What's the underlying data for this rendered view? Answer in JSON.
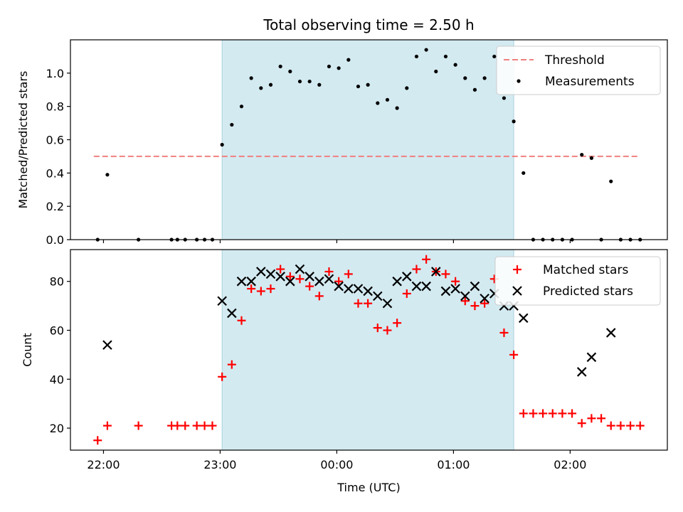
{
  "chart_data": [
    {
      "type": "scatter",
      "title": "Total observing time = 2.50 h",
      "xlabel": "",
      "ylabel": "Matched/Predicted stars",
      "ylim": [
        0,
        1.2
      ],
      "yticks": [
        "0.0",
        "0.2",
        "0.4",
        "0.6",
        "0.8",
        "1.0"
      ],
      "xlim": [
        "21:43",
        "02:50"
      ],
      "highlight_span": [
        "23:01",
        "01:31"
      ],
      "highlight_color": "#d3eaf1",
      "threshold": {
        "name": "Threshold",
        "value": 0.5,
        "x_range": [
          "21:55",
          "02:35"
        ],
        "color": "#f08080"
      },
      "legend_position": "upper right",
      "series": [
        {
          "name": "Measurements",
          "color": "#000000",
          "points": [
            [
              "21:57",
              0.0
            ],
            [
              "22:02",
              0.39
            ],
            [
              "22:18",
              0.0
            ],
            [
              "22:35",
              0.0
            ],
            [
              "22:38",
              0.0
            ],
            [
              "22:42",
              0.0
            ],
            [
              "22:48",
              0.0
            ],
            [
              "22:52",
              0.0
            ],
            [
              "22:56",
              0.0
            ],
            [
              "23:01",
              0.57
            ],
            [
              "23:06",
              0.69
            ],
            [
              "23:11",
              0.8
            ],
            [
              "23:16",
              0.97
            ],
            [
              "23:21",
              0.91
            ],
            [
              "23:26",
              0.93
            ],
            [
              "23:31",
              1.04
            ],
            [
              "23:36",
              1.01
            ],
            [
              "23:41",
              0.95
            ],
            [
              "23:46",
              0.95
            ],
            [
              "23:51",
              0.93
            ],
            [
              "23:56",
              1.04
            ],
            [
              "00:01",
              1.03
            ],
            [
              "00:06",
              1.08
            ],
            [
              "00:11",
              0.92
            ],
            [
              "00:16",
              0.93
            ],
            [
              "00:21",
              0.82
            ],
            [
              "00:26",
              0.84
            ],
            [
              "00:31",
              0.79
            ],
            [
              "00:36",
              0.91
            ],
            [
              "00:41",
              1.1
            ],
            [
              "00:46",
              1.14
            ],
            [
              "00:51",
              1.01
            ],
            [
              "00:56",
              1.1
            ],
            [
              "01:01",
              1.05
            ],
            [
              "01:06",
              0.97
            ],
            [
              "01:11",
              0.9
            ],
            [
              "01:16",
              0.97
            ],
            [
              "01:21",
              1.1
            ],
            [
              "01:26",
              0.85
            ],
            [
              "01:31",
              0.71
            ],
            [
              "01:36",
              0.4
            ],
            [
              "01:41",
              0.0
            ],
            [
              "01:46",
              0.0
            ],
            [
              "01:51",
              0.0
            ],
            [
              "01:56",
              0.0
            ],
            [
              "02:01",
              0.0
            ],
            [
              "02:06",
              0.51
            ],
            [
              "02:11",
              0.49
            ],
            [
              "02:16",
              0.0
            ],
            [
              "02:21",
              0.35
            ],
            [
              "02:26",
              0.0
            ],
            [
              "02:31",
              0.0
            ],
            [
              "02:36",
              0.0
            ]
          ]
        }
      ]
    },
    {
      "type": "scatter",
      "title": "",
      "xlabel": "Time (UTC)",
      "ylabel": "Count",
      "ylim": [
        11,
        93
      ],
      "yticks": [
        "20",
        "40",
        "60",
        "80"
      ],
      "xticks": [
        "22:00",
        "23:00",
        "00:00",
        "01:00",
        "02:00"
      ],
      "xlim": [
        "21:43",
        "02:50"
      ],
      "highlight_span": [
        "23:01",
        "01:31"
      ],
      "highlight_color": "#d3eaf1",
      "legend_position": "upper right",
      "series": [
        {
          "name": "Matched stars",
          "marker": "+",
          "color": "#ff0000",
          "points": [
            [
              "21:57",
              15
            ],
            [
              "22:02",
              21
            ],
            [
              "22:18",
              21
            ],
            [
              "22:35",
              21
            ],
            [
              "22:38",
              21
            ],
            [
              "22:42",
              21
            ],
            [
              "22:48",
              21
            ],
            [
              "22:52",
              21
            ],
            [
              "22:56",
              21
            ],
            [
              "23:01",
              41
            ],
            [
              "23:06",
              46
            ],
            [
              "23:11",
              64
            ],
            [
              "23:16",
              77
            ],
            [
              "23:21",
              76
            ],
            [
              "23:26",
              77
            ],
            [
              "23:31",
              85
            ],
            [
              "23:36",
              82
            ],
            [
              "23:41",
              81
            ],
            [
              "23:46",
              78
            ],
            [
              "23:51",
              74
            ],
            [
              "23:56",
              84
            ],
            [
              "00:01",
              80
            ],
            [
              "00:06",
              83
            ],
            [
              "00:11",
              71
            ],
            [
              "00:16",
              71
            ],
            [
              "00:21",
              61
            ],
            [
              "00:26",
              60
            ],
            [
              "00:31",
              63
            ],
            [
              "00:36",
              75
            ],
            [
              "00:41",
              85
            ],
            [
              "00:46",
              89
            ],
            [
              "00:51",
              84
            ],
            [
              "00:56",
              83
            ],
            [
              "01:01",
              80
            ],
            [
              "01:06",
              72
            ],
            [
              "01:11",
              70
            ],
            [
              "01:16",
              71
            ],
            [
              "01:21",
              81
            ],
            [
              "01:26",
              59
            ],
            [
              "01:31",
              50
            ],
            [
              "01:36",
              26
            ],
            [
              "01:41",
              26
            ],
            [
              "01:46",
              26
            ],
            [
              "01:51",
              26
            ],
            [
              "01:56",
              26
            ],
            [
              "02:01",
              26
            ],
            [
              "02:06",
              22
            ],
            [
              "02:11",
              24
            ],
            [
              "02:16",
              24
            ],
            [
              "02:21",
              21
            ],
            [
              "02:26",
              21
            ],
            [
              "02:31",
              21
            ],
            [
              "02:36",
              21
            ]
          ]
        },
        {
          "name": "Predicted stars",
          "marker": "x",
          "color": "#000000",
          "points": [
            [
              "22:02",
              54
            ],
            [
              "23:01",
              72
            ],
            [
              "23:06",
              67
            ],
            [
              "23:11",
              80
            ],
            [
              "23:16",
              80
            ],
            [
              "23:21",
              84
            ],
            [
              "23:26",
              83
            ],
            [
              "23:31",
              82
            ],
            [
              "23:36",
              80
            ],
            [
              "23:41",
              85
            ],
            [
              "23:46",
              82
            ],
            [
              "23:51",
              80
            ],
            [
              "23:56",
              81
            ],
            [
              "00:01",
              78
            ],
            [
              "00:06",
              77
            ],
            [
              "00:11",
              77
            ],
            [
              "00:16",
              76
            ],
            [
              "00:21",
              74
            ],
            [
              "00:26",
              71
            ],
            [
              "00:31",
              80
            ],
            [
              "00:36",
              82
            ],
            [
              "00:41",
              78
            ],
            [
              "00:46",
              78
            ],
            [
              "00:51",
              84
            ],
            [
              "00:56",
              76
            ],
            [
              "01:01",
              77
            ],
            [
              "01:06",
              74
            ],
            [
              "01:11",
              78
            ],
            [
              "01:16",
              73
            ],
            [
              "01:21",
              75
            ],
            [
              "01:26",
              70
            ],
            [
              "01:31",
              70
            ],
            [
              "01:36",
              65
            ],
            [
              "02:06",
              43
            ],
            [
              "02:11",
              49
            ],
            [
              "02:21",
              59
            ]
          ]
        }
      ]
    }
  ]
}
